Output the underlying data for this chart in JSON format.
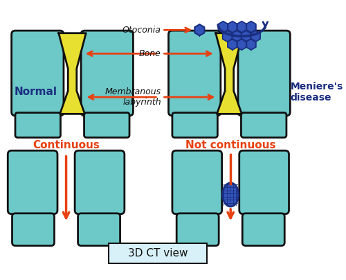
{
  "bg_color": "#ffffff",
  "teal_color": "#6DC8C8",
  "teal_light": "#8DD8D8",
  "yellow_color": "#E8E030",
  "black_outline": "#111111",
  "red_arrow": "#E84010",
  "blue_dark": "#1A2E80",
  "blue_otoconia": "#3355BB",
  "normal_label": "Normal",
  "meniere_label": "Meniere's\ndisease",
  "otoconia_label": "Otoconia",
  "bone_label": "Bone",
  "membranous_label": "Membranous\nlabyrinth",
  "continuous_label": "Continuous",
  "not_continuous_label": "Not continuous",
  "ct_view_label": "3D CT view"
}
